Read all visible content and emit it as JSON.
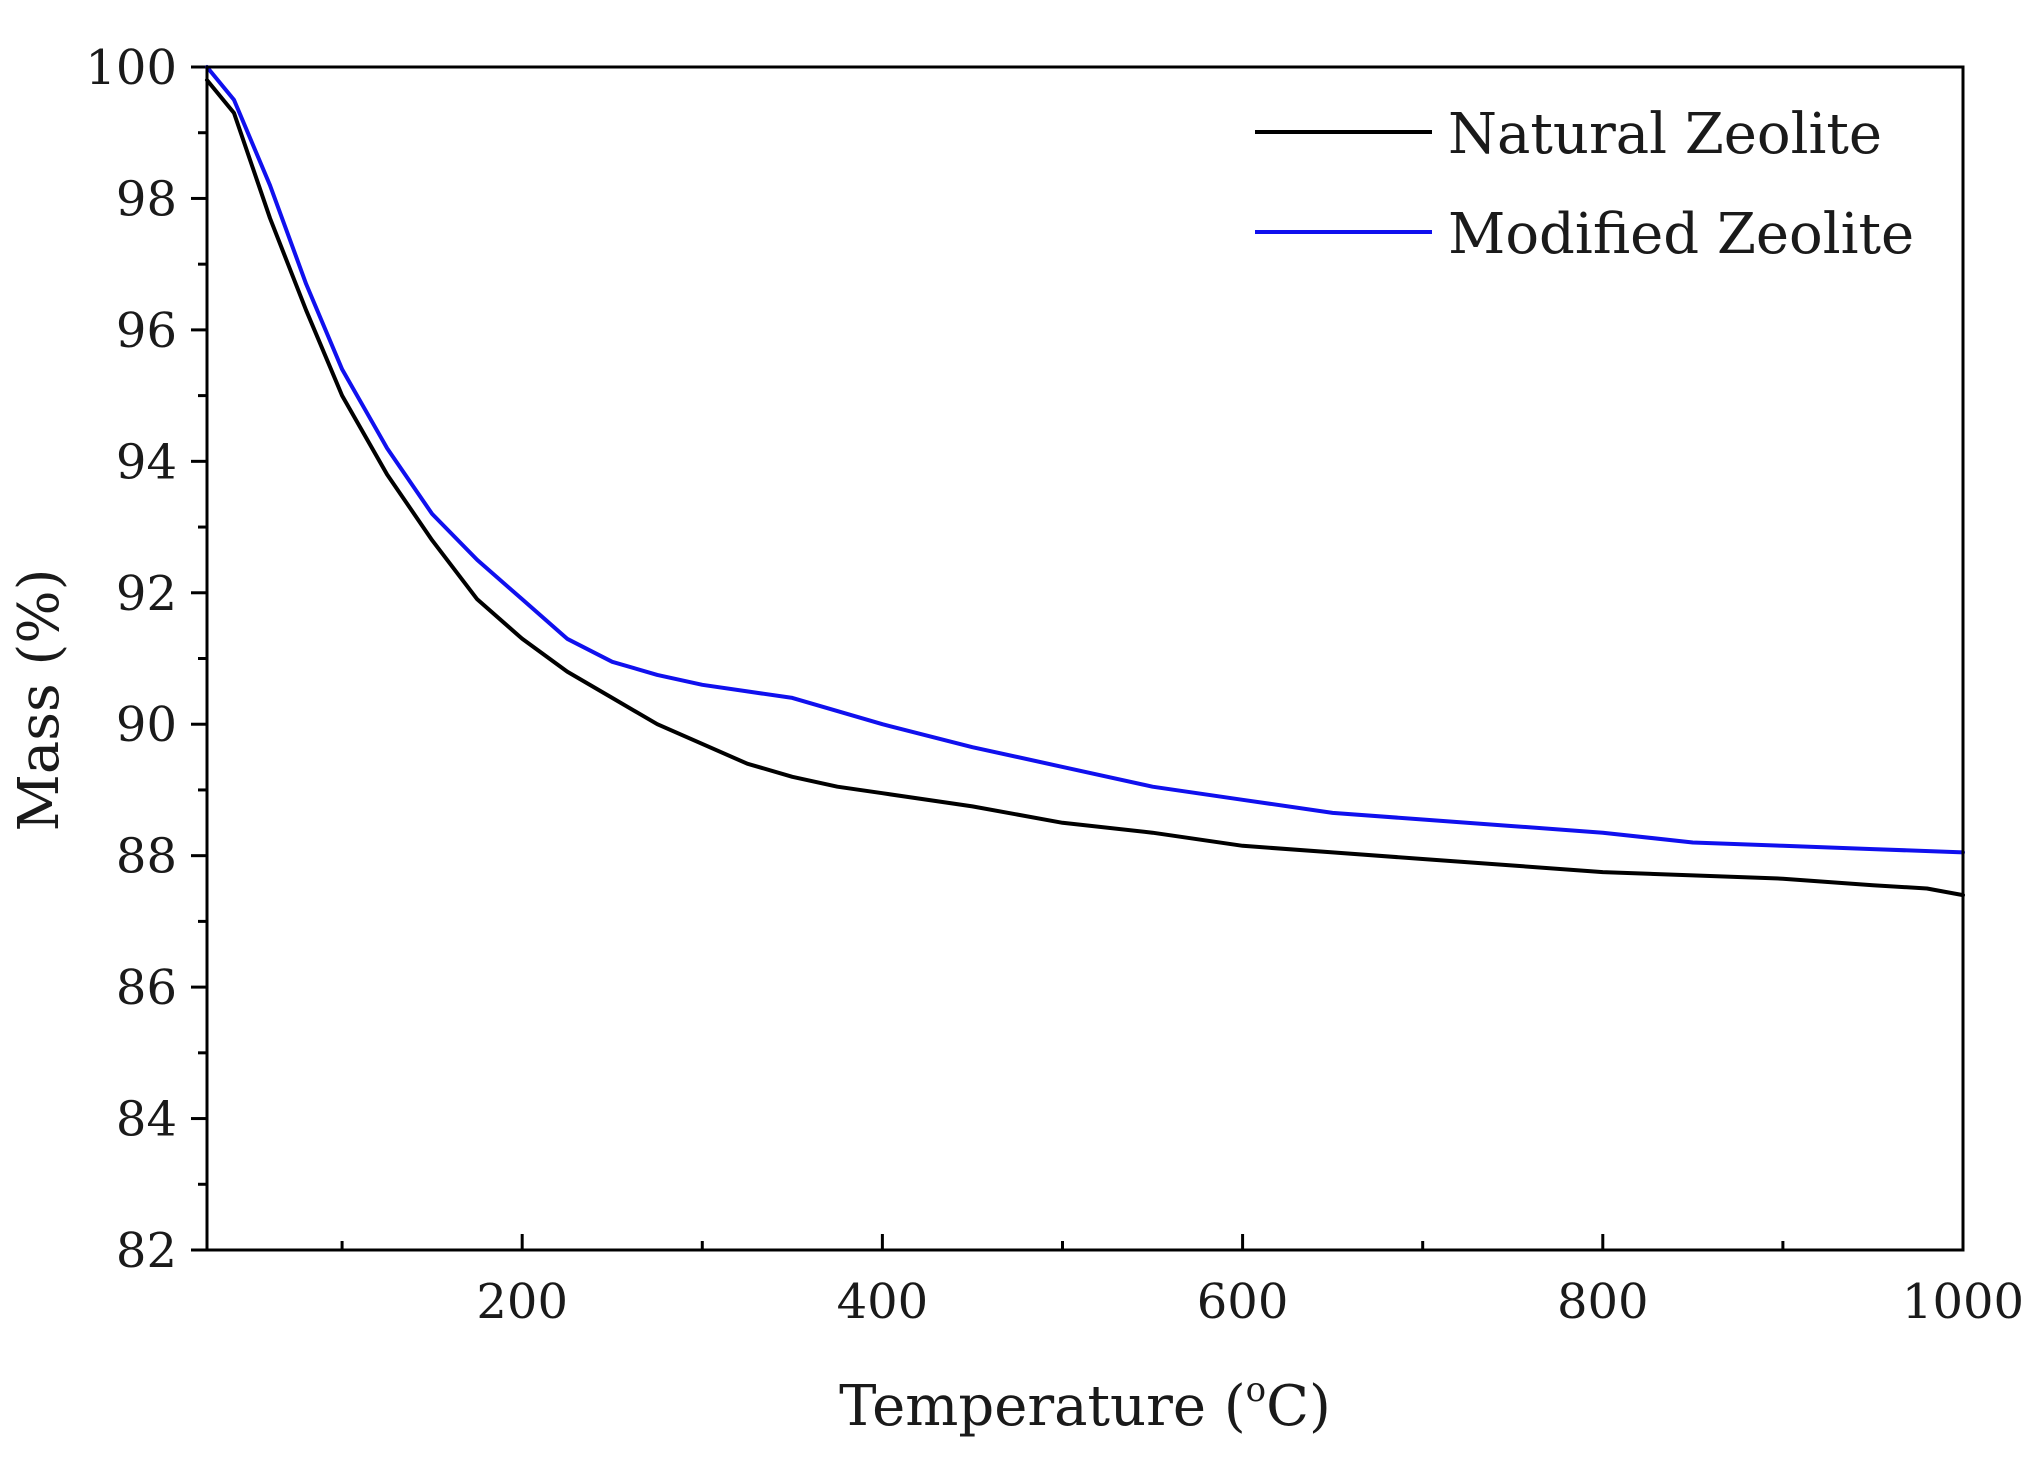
{
  "chart_data": {
    "type": "line",
    "title": "",
    "xlabel": "Temperature (",
    "xlabel_sup": "o",
    "xlabel_tail": "C)",
    "ylabel": "Mass (%)",
    "xlim": [
      25,
      1000
    ],
    "ylim": [
      82,
      100
    ],
    "x_major_ticks": [
      200,
      400,
      600,
      800,
      1000
    ],
    "x_minor_ticks": [
      100,
      300,
      500,
      700,
      900
    ],
    "y_major_ticks": [
      82,
      84,
      86,
      88,
      90,
      92,
      94,
      96,
      98,
      100
    ],
    "y_minor_ticks": [
      83,
      85,
      87,
      89,
      91,
      93,
      95,
      97,
      99
    ],
    "grid": false,
    "legend_position": "top-right",
    "series": [
      {
        "name": "Natural Zeolite",
        "color": "#000000",
        "x": [
          25,
          40,
          60,
          80,
          100,
          125,
          150,
          175,
          200,
          225,
          250,
          275,
          300,
          325,
          350,
          375,
          400,
          450,
          500,
          550,
          600,
          650,
          700,
          750,
          800,
          850,
          900,
          950,
          980,
          1000
        ],
        "y": [
          99.8,
          99.3,
          97.7,
          96.3,
          95.0,
          93.8,
          92.8,
          91.9,
          91.3,
          90.8,
          90.4,
          90.0,
          89.7,
          89.4,
          89.2,
          89.05,
          88.95,
          88.75,
          88.5,
          88.35,
          88.15,
          88.05,
          87.95,
          87.85,
          87.75,
          87.7,
          87.65,
          87.55,
          87.5,
          87.4
        ]
      },
      {
        "name": "Modified Zeolite",
        "color": "#1010ee",
        "x": [
          25,
          40,
          60,
          80,
          100,
          125,
          150,
          175,
          200,
          225,
          250,
          275,
          300,
          325,
          350,
          375,
          400,
          450,
          500,
          550,
          600,
          650,
          700,
          750,
          800,
          850,
          900,
          950,
          1000
        ],
        "y": [
          100.0,
          99.5,
          98.2,
          96.7,
          95.4,
          94.2,
          93.2,
          92.5,
          91.9,
          91.3,
          90.95,
          90.75,
          90.6,
          90.5,
          90.4,
          90.2,
          90.0,
          89.65,
          89.35,
          89.05,
          88.85,
          88.65,
          88.55,
          88.45,
          88.35,
          88.2,
          88.15,
          88.1,
          88.05
        ]
      }
    ]
  }
}
